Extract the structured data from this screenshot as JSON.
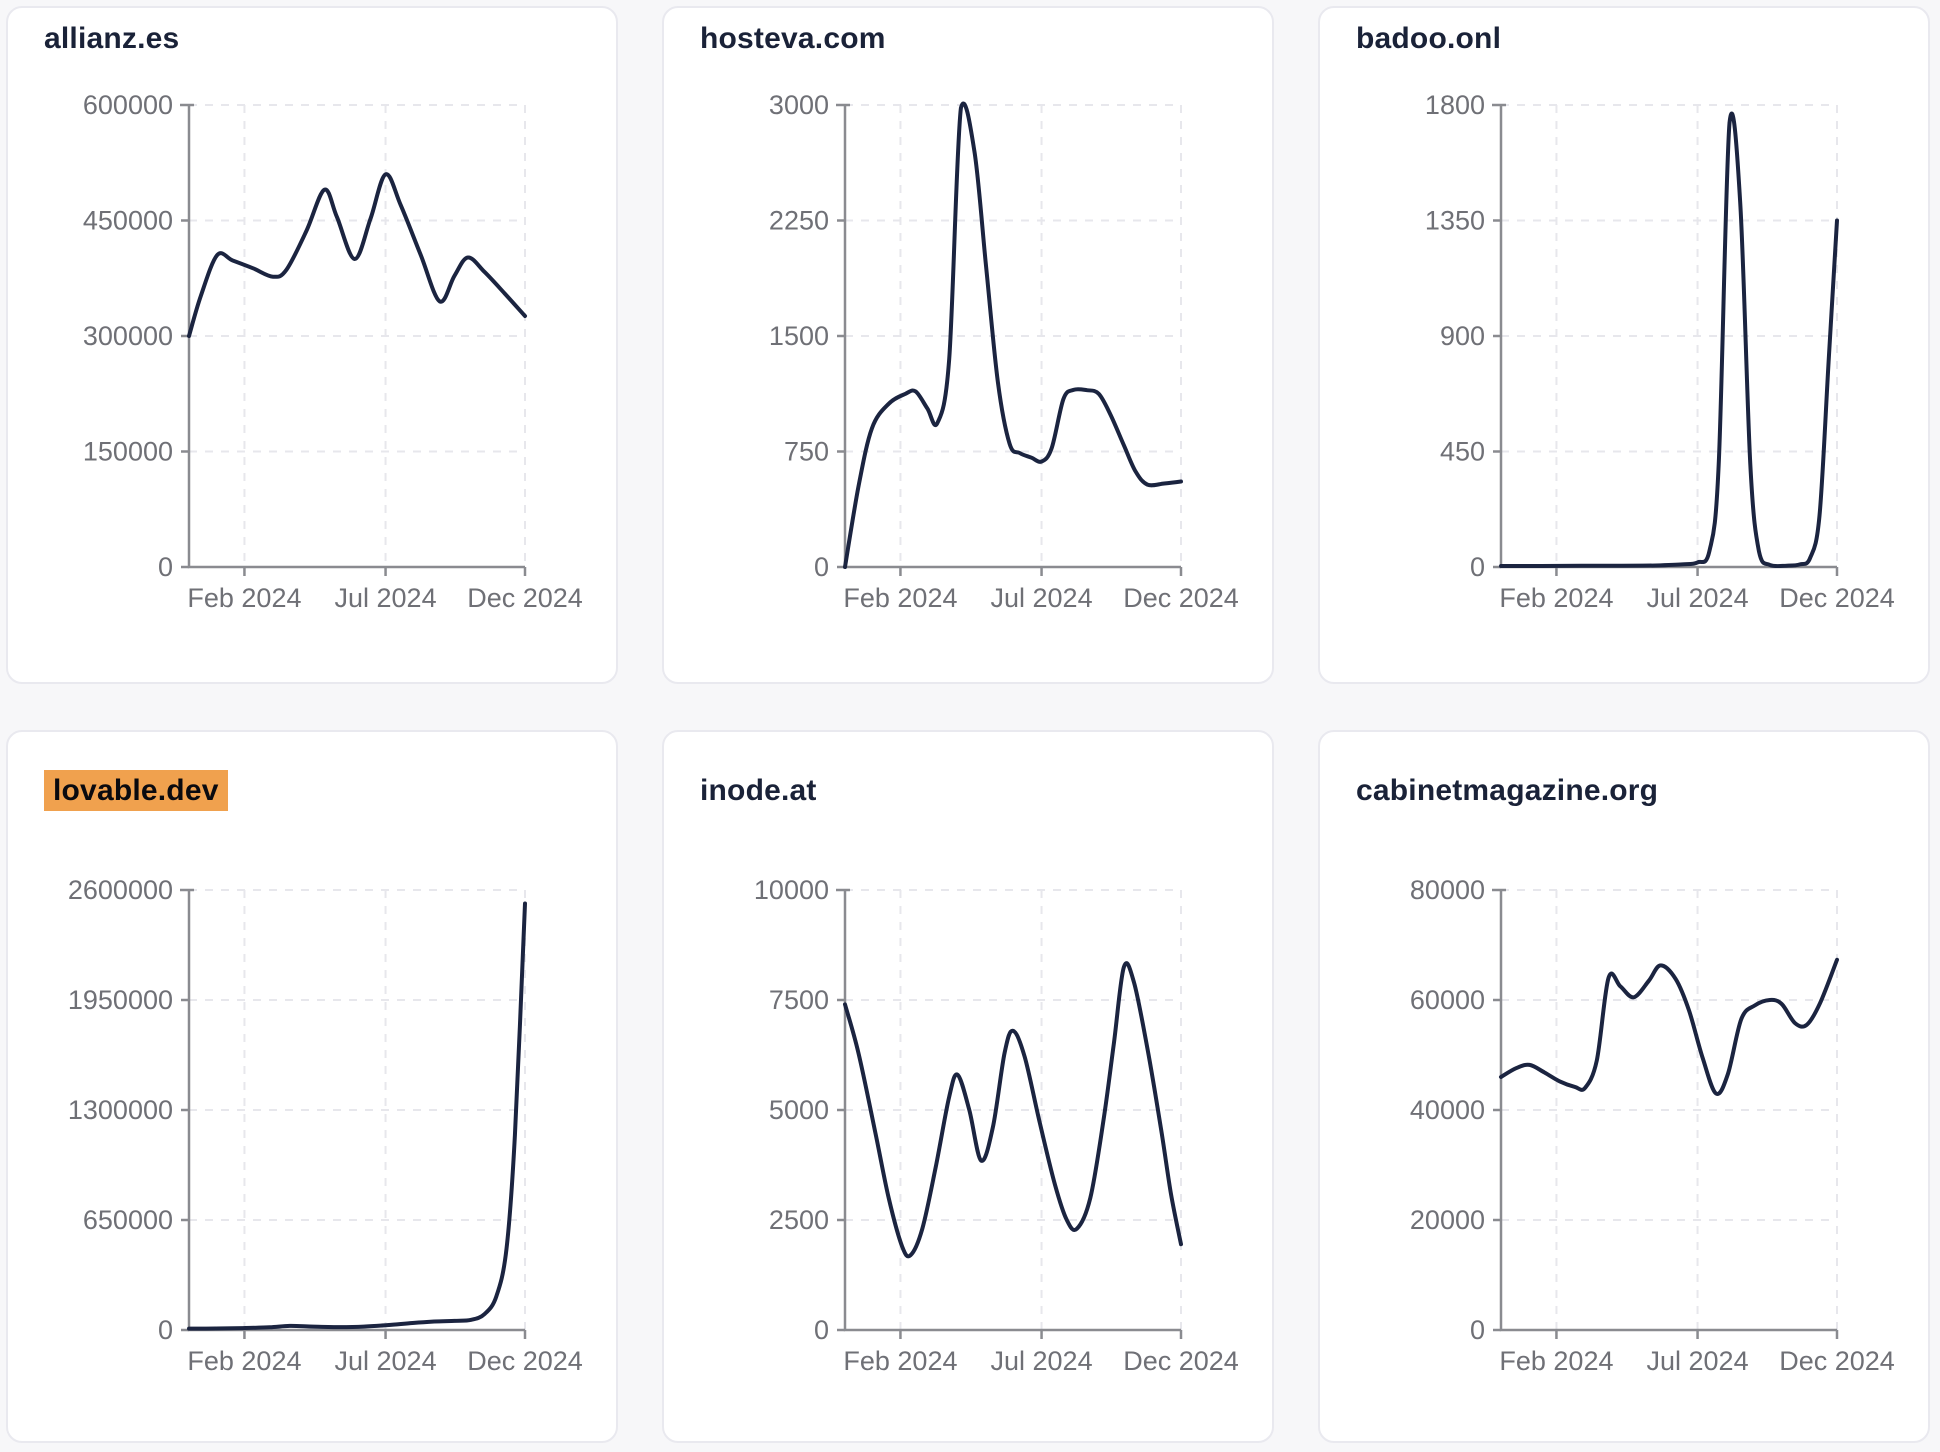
{
  "page": {
    "background": "#f7f7f9",
    "card_background": "#ffffff",
    "card_border": "#e9e9ef",
    "accent_highlight": "#f0a14e",
    "line_color": "#1b2440",
    "axis_color": "#8a8b90",
    "tick_text_color": "#6f7076",
    "title_color": "#1a2238"
  },
  "chart_data": [
    {
      "type": "line",
      "title": "allianz.es",
      "title_highlighted": false,
      "xlabel": "",
      "ylabel": "",
      "x_labels": [
        "Feb 2024",
        "Jul 2024",
        "Dec 2024"
      ],
      "y_ticks": [
        600000,
        450000,
        300000,
        150000,
        0
      ],
      "ylim": [
        0,
        600000
      ],
      "x_range": [
        "Jan 2024",
        "Dec 2024"
      ],
      "grid": true,
      "legend": "none",
      "points": [
        [
          0,
          300000
        ],
        [
          0.035,
          352000
        ],
        [
          0.084,
          405000
        ],
        [
          0.13,
          398000
        ],
        [
          0.19,
          388000
        ],
        [
          0.25,
          377000
        ],
        [
          0.29,
          386000
        ],
        [
          0.35,
          437000
        ],
        [
          0.403,
          490000
        ],
        [
          0.44,
          455000
        ],
        [
          0.493,
          400000
        ],
        [
          0.54,
          452000
        ],
        [
          0.585,
          510000
        ],
        [
          0.63,
          470000
        ],
        [
          0.69,
          405000
        ],
        [
          0.746,
          345000
        ],
        [
          0.79,
          378000
        ],
        [
          0.83,
          402000
        ],
        [
          0.88,
          383000
        ],
        [
          0.94,
          355000
        ],
        [
          1,
          326000
        ]
      ]
    },
    {
      "type": "line",
      "title": "hosteva.com",
      "title_highlighted": false,
      "xlabel": "",
      "ylabel": "",
      "x_labels": [
        "Feb 2024",
        "Jul 2024",
        "Dec 2024"
      ],
      "y_ticks": [
        3000,
        2250,
        1500,
        750,
        0
      ],
      "ylim": [
        0,
        3000
      ],
      "x_range": [
        "Jan 2024",
        "Dec 2024"
      ],
      "grid": true,
      "legend": "none",
      "points": [
        [
          0,
          0
        ],
        [
          0.04,
          520
        ],
        [
          0.08,
          900
        ],
        [
          0.13,
          1060
        ],
        [
          0.18,
          1125
        ],
        [
          0.21,
          1140
        ],
        [
          0.245,
          1030
        ],
        [
          0.275,
          935
        ],
        [
          0.31,
          1350
        ],
        [
          0.345,
          2980
        ],
        [
          0.385,
          2700
        ],
        [
          0.42,
          1950
        ],
        [
          0.455,
          1200
        ],
        [
          0.49,
          800
        ],
        [
          0.52,
          740
        ],
        [
          0.555,
          710
        ],
        [
          0.585,
          685
        ],
        [
          0.615,
          770
        ],
        [
          0.65,
          1090
        ],
        [
          0.68,
          1150
        ],
        [
          0.72,
          1148
        ],
        [
          0.755,
          1125
        ],
        [
          0.79,
          990
        ],
        [
          0.83,
          790
        ],
        [
          0.865,
          620
        ],
        [
          0.9,
          535
        ],
        [
          0.95,
          542
        ],
        [
          1,
          555
        ]
      ]
    },
    {
      "type": "line",
      "title": "badoo.onl",
      "title_highlighted": false,
      "xlabel": "",
      "ylabel": "",
      "x_labels": [
        "Feb 2024",
        "Jul 2024",
        "Dec 2024"
      ],
      "y_ticks": [
        1800,
        1350,
        900,
        450,
        0
      ],
      "ylim": [
        0,
        1800
      ],
      "x_range": [
        "Jan 2024",
        "Dec 2024"
      ],
      "grid": true,
      "legend": "none",
      "points": [
        [
          0,
          4
        ],
        [
          0.12,
          4
        ],
        [
          0.24,
          5
        ],
        [
          0.36,
          5
        ],
        [
          0.46,
          6
        ],
        [
          0.54,
          10
        ],
        [
          0.585,
          18
        ],
        [
          0.62,
          60
        ],
        [
          0.648,
          400
        ],
        [
          0.68,
          1730
        ],
        [
          0.712,
          1420
        ],
        [
          0.742,
          400
        ],
        [
          0.768,
          60
        ],
        [
          0.8,
          8
        ],
        [
          0.85,
          5
        ],
        [
          0.89,
          10
        ],
        [
          0.92,
          35
        ],
        [
          0.948,
          200
        ],
        [
          0.975,
          800
        ],
        [
          1,
          1350
        ]
      ]
    },
    {
      "type": "line",
      "title": "lovable.dev",
      "title_highlighted": true,
      "xlabel": "",
      "ylabel": "",
      "x_labels": [
        "Feb 2024",
        "Jul 2024",
        "Dec 2024"
      ],
      "y_ticks": [
        2600000,
        1950000,
        1300000,
        650000,
        0
      ],
      "ylim": [
        0,
        2600000
      ],
      "x_range": [
        "Jan 2024",
        "Dec 2024"
      ],
      "grid": true,
      "legend": "none",
      "points": [
        [
          0,
          8000
        ],
        [
          0.08,
          9000
        ],
        [
          0.16,
          11000
        ],
        [
          0.24,
          16000
        ],
        [
          0.3,
          24000
        ],
        [
          0.37,
          20000
        ],
        [
          0.45,
          17000
        ],
        [
          0.52,
          20000
        ],
        [
          0.6,
          30000
        ],
        [
          0.67,
          42000
        ],
        [
          0.73,
          50000
        ],
        [
          0.79,
          54000
        ],
        [
          0.84,
          60000
        ],
        [
          0.88,
          95000
        ],
        [
          0.915,
          200000
        ],
        [
          0.945,
          480000
        ],
        [
          0.97,
          1150000
        ],
        [
          1,
          2520000
        ]
      ]
    },
    {
      "type": "line",
      "title": "inode.at",
      "title_highlighted": false,
      "xlabel": "",
      "ylabel": "",
      "x_labels": [
        "Feb 2024",
        "Jul 2024",
        "Dec 2024"
      ],
      "y_ticks": [
        10000,
        7500,
        5000,
        2500,
        0
      ],
      "ylim": [
        0,
        10000
      ],
      "x_range": [
        "Jan 2024",
        "Dec 2024"
      ],
      "grid": true,
      "legend": "none",
      "points": [
        [
          0,
          7400
        ],
        [
          0.04,
          6300
        ],
        [
          0.09,
          4500
        ],
        [
          0.13,
          3000
        ],
        [
          0.17,
          1900
        ],
        [
          0.195,
          1700
        ],
        [
          0.23,
          2300
        ],
        [
          0.27,
          3700
        ],
        [
          0.31,
          5300
        ],
        [
          0.335,
          5800
        ],
        [
          0.37,
          5000
        ],
        [
          0.405,
          3850
        ],
        [
          0.44,
          4600
        ],
        [
          0.475,
          6300
        ],
        [
          0.5,
          6800
        ],
        [
          0.535,
          6200
        ],
        [
          0.58,
          4700
        ],
        [
          0.625,
          3300
        ],
        [
          0.66,
          2500
        ],
        [
          0.69,
          2300
        ],
        [
          0.73,
          3000
        ],
        [
          0.77,
          4800
        ],
        [
          0.8,
          6500
        ],
        [
          0.83,
          8250
        ],
        [
          0.86,
          7900
        ],
        [
          0.9,
          6400
        ],
        [
          0.94,
          4600
        ],
        [
          0.97,
          3100
        ],
        [
          1,
          1950
        ]
      ]
    },
    {
      "type": "line",
      "title": "cabinetmagazine.org",
      "title_highlighted": false,
      "xlabel": "",
      "ylabel": "",
      "x_labels": [
        "Feb 2024",
        "Jul 2024",
        "Dec 2024"
      ],
      "y_ticks": [
        80000,
        60000,
        40000,
        20000,
        0
      ],
      "ylim": [
        0,
        80000
      ],
      "x_range": [
        "Jan 2024",
        "Dec 2024"
      ],
      "grid": true,
      "legend": "none",
      "points": [
        [
          0,
          46000
        ],
        [
          0.045,
          47600
        ],
        [
          0.085,
          48200
        ],
        [
          0.13,
          46800
        ],
        [
          0.175,
          45200
        ],
        [
          0.22,
          44200
        ],
        [
          0.25,
          44000
        ],
        [
          0.285,
          49000
        ],
        [
          0.32,
          64000
        ],
        [
          0.355,
          62500
        ],
        [
          0.395,
          60500
        ],
        [
          0.44,
          63500
        ],
        [
          0.475,
          66300
        ],
        [
          0.52,
          63800
        ],
        [
          0.56,
          58000
        ],
        [
          0.6,
          49500
        ],
        [
          0.64,
          43000
        ],
        [
          0.675,
          46500
        ],
        [
          0.715,
          56500
        ],
        [
          0.755,
          59000
        ],
        [
          0.8,
          60000
        ],
        [
          0.835,
          59300
        ],
        [
          0.875,
          55800
        ],
        [
          0.91,
          55500
        ],
        [
          0.95,
          59500
        ],
        [
          1,
          67300
        ]
      ]
    }
  ]
}
